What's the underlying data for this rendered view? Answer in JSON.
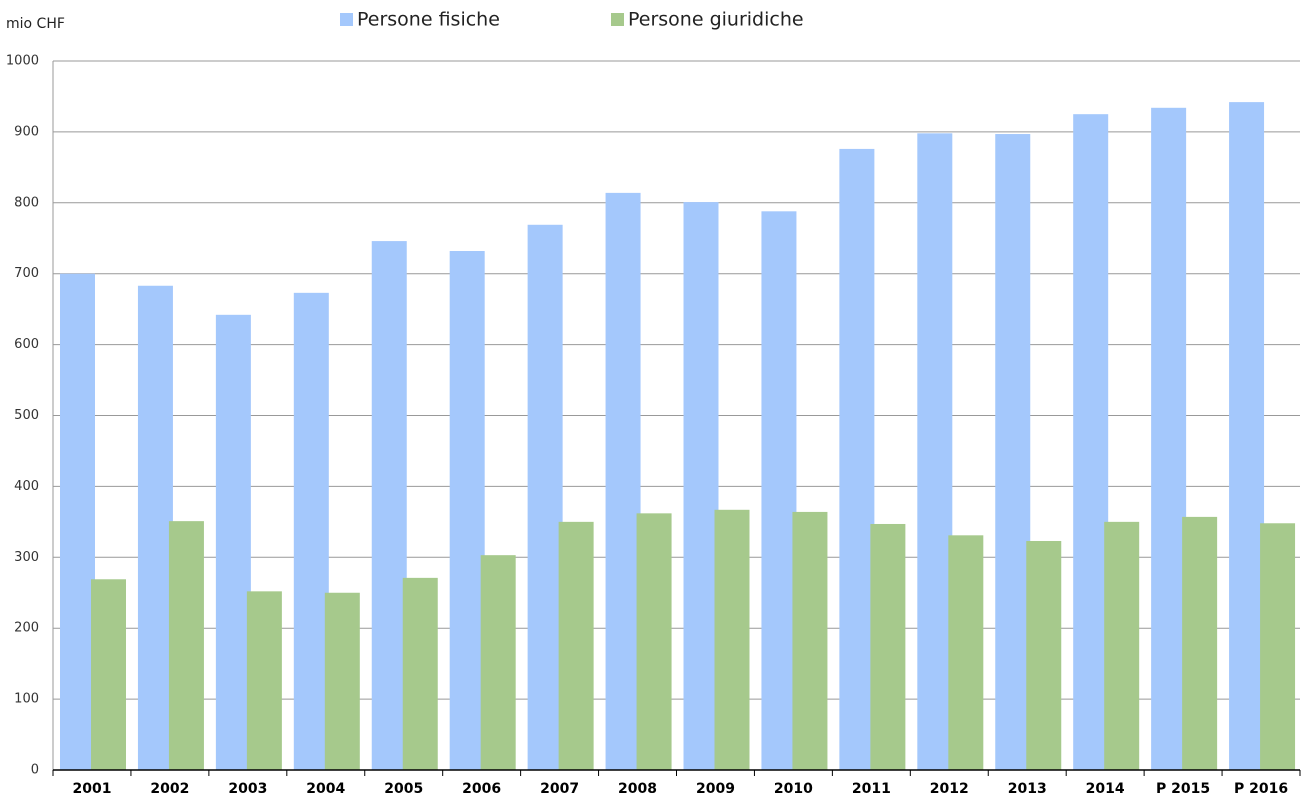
{
  "chart_data": {
    "type": "bar",
    "y_label": "mio CHF",
    "categories": [
      "2001",
      "2002",
      "2003",
      "2004",
      "2005",
      "2006",
      "2007",
      "2008",
      "2009",
      "2010",
      "2011",
      "2012",
      "2013",
      "2014",
      "P 2015",
      "P 2016"
    ],
    "series": [
      {
        "name": "Persone fisiche",
        "color": "#a4c8fc",
        "values": [
          700,
          683,
          642,
          673,
          746,
          732,
          769,
          814,
          801,
          788,
          876,
          898,
          897,
          925,
          934,
          942
        ]
      },
      {
        "name": "Persone giuridiche",
        "color": "#a6c98c",
        "values": [
          269,
          351,
          252,
          250,
          271,
          303,
          350,
          362,
          367,
          364,
          347,
          331,
          323,
          350,
          357,
          348
        ]
      }
    ],
    "ylim": [
      0,
      1000
    ],
    "yticks": [
      0,
      100,
      200,
      300,
      400,
      500,
      600,
      700,
      800,
      900,
      1000
    ],
    "grid": true
  }
}
